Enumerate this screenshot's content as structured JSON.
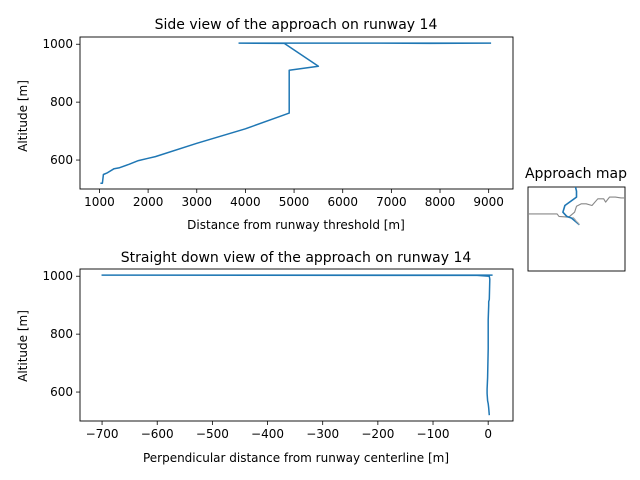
{
  "chart_data": [
    {
      "type": "line",
      "title": "Side view of the approach on runway 14",
      "xlabel": "Distance from runway threshold [m]",
      "ylabel": "Altitude [m]",
      "xlim": [
        600,
        9500
      ],
      "ylim": [
        500,
        1025
      ],
      "xticks": [
        1000,
        2000,
        3000,
        4000,
        5000,
        6000,
        7000,
        8000,
        9000
      ],
      "yticks": [
        600,
        800,
        1000
      ],
      "color": "#1f77b4",
      "series": [
        {
          "x": [
            1020,
            1060,
            1080,
            1150,
            1300,
            1400,
            1600,
            1800,
            2000,
            2150,
            3000,
            4000,
            4700,
            4900,
            4900,
            4900,
            5500,
            4800,
            3870,
            4800,
            6100,
            9000,
            7800,
            6700,
            9050
          ],
          "y": [
            520,
            520,
            550,
            555,
            570,
            573,
            585,
            598,
            606,
            612,
            658,
            708,
            750,
            762,
            910,
            910,
            924,
            1003,
            1004,
            1004,
            1004,
            1004,
            1003,
            1004,
            1004
          ]
        }
      ]
    },
    {
      "type": "line",
      "title": "Straight down view of the approach on runway 14",
      "xlabel": "Perpendicular distance from runway centerline [m]",
      "ylabel": "Altitude [m]",
      "xlim": [
        -740,
        45
      ],
      "ylim": [
        500,
        1025
      ],
      "xticks": [
        -700,
        -600,
        -500,
        -400,
        -300,
        -200,
        -100,
        0
      ],
      "yticks": [
        600,
        800,
        1000
      ],
      "color": "#1f77b4",
      "series": [
        {
          "x": [
            2,
            1,
            0,
            -1,
            -2,
            -2,
            -1,
            0,
            0,
            1,
            1,
            2,
            3,
            2,
            -20,
            -700,
            -20,
            8
          ],
          "y": [
            520,
            545,
            560,
            570,
            595,
            610,
            650,
            750,
            850,
            900,
            912,
            920,
            990,
            1000,
            1003,
            1004,
            1004,
            1004
          ]
        }
      ]
    },
    {
      "type": "line",
      "title": "Approach map",
      "series": [
        {
          "x": [
            0,
            0.08,
            0.18,
            0.3,
            0.32,
            0.42,
            0.48,
            0.5,
            0.55,
            0.6,
            0.66,
            0.72,
            0.78,
            0.8,
            0.84,
            0.9,
            0.96,
            1.0
          ],
          "y": [
            0.32,
            0.32,
            0.32,
            0.32,
            0.35,
            0.36,
            0.3,
            0.23,
            0.2,
            0.2,
            0.22,
            0.14,
            0.14,
            0.18,
            0.12,
            0.12,
            0.13,
            0.13
          ],
          "color": "#888888"
        },
        {
          "x": [
            0.49,
            0.5,
            0.5,
            0.38,
            0.36,
            0.4,
            0.45,
            0.5,
            0.53
          ],
          "y": [
            0.0,
            0.05,
            0.12,
            0.22,
            0.3,
            0.35,
            0.37,
            0.42,
            0.45
          ],
          "color": "#1f77b4"
        },
        {
          "x": [
            0.46,
            0.48,
            0.5,
            0.52,
            0.53
          ],
          "y": [
            0.36,
            0.38,
            0.41,
            0.43,
            0.45
          ],
          "color": "#aaaaaa"
        }
      ]
    }
  ]
}
